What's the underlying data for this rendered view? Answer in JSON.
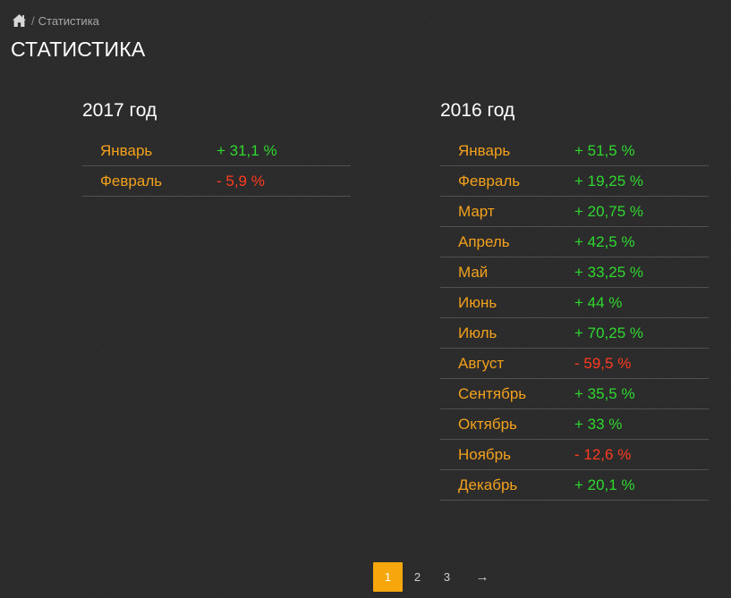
{
  "breadcrumb": {
    "home_icon": "home-icon",
    "separator": "/",
    "current": "Статистика"
  },
  "page_title": "СТАТИСТИКА",
  "colors": {
    "background": "#2b2b2b",
    "month": "#f3a11c",
    "positive": "#2fd82f",
    "negative": "#ff3b1f",
    "accent": "#f5a70c"
  },
  "years": [
    {
      "title": "2017 год",
      "rows": [
        {
          "month": "Январь",
          "value": "+ 31,1 %",
          "trend": "pos"
        },
        {
          "month": "Февраль",
          "value": "- 5,9 %",
          "trend": "neg"
        }
      ]
    },
    {
      "title": "2016 год",
      "rows": [
        {
          "month": "Январь",
          "value": "+ 51,5 %",
          "trend": "pos"
        },
        {
          "month": "Февраль",
          "value": "+ 19,25 %",
          "trend": "pos"
        },
        {
          "month": "Март",
          "value": "+ 20,75 %",
          "trend": "pos"
        },
        {
          "month": "Апрель",
          "value": "+ 42,5 %",
          "trend": "pos"
        },
        {
          "month": "Май",
          "value": "+ 33,25 %",
          "trend": "pos"
        },
        {
          "month": "Июнь",
          "value": "+ 44 %",
          "trend": "pos"
        },
        {
          "month": "Июль",
          "value": "+ 70,25 %",
          "trend": "pos"
        },
        {
          "month": "Август",
          "value": "- 59,5 %",
          "trend": "neg"
        },
        {
          "month": "Сентябрь",
          "value": "+ 35,5 %",
          "trend": "pos"
        },
        {
          "month": "Октябрь",
          "value": "+ 33 %",
          "trend": "pos"
        },
        {
          "month": "Ноябрь",
          "value": "- 12,6 %",
          "trend": "neg"
        },
        {
          "month": "Декабрь",
          "value": "+ 20,1 %",
          "trend": "pos"
        }
      ]
    }
  ],
  "pagination": {
    "pages": [
      "1",
      "2",
      "3"
    ],
    "active": "1",
    "next_label": "→",
    "next_icon": "arrow-right-icon"
  }
}
